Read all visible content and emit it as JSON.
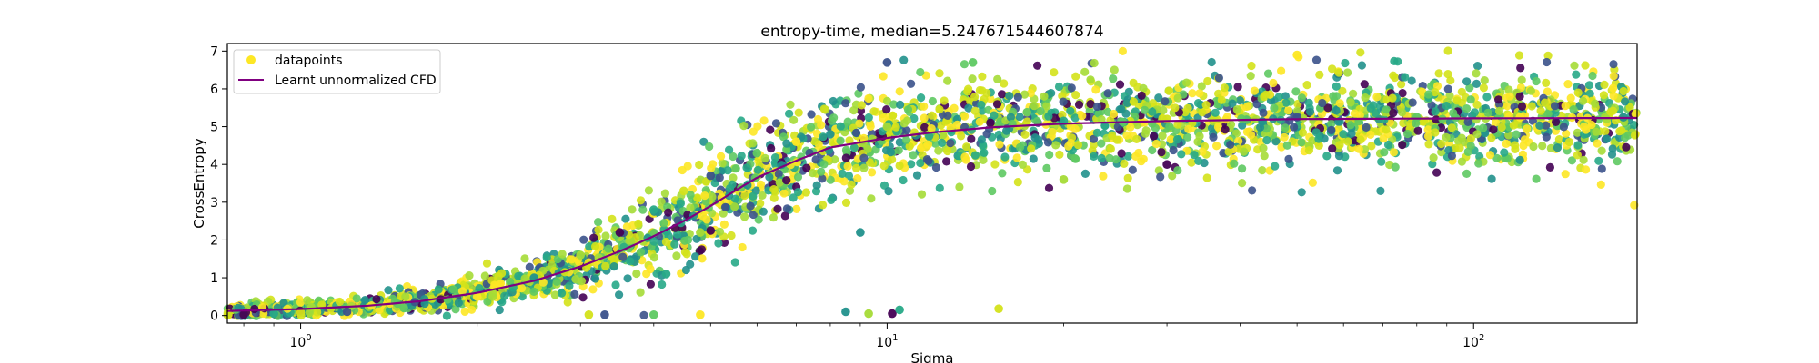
{
  "chart_data": {
    "type": "scatter",
    "title": "entropy-time, median=5.247671544607874",
    "xlabel": "Sigma",
    "ylabel": "CrossEntropy",
    "x_scale": "log",
    "xlim": [
      0.75,
      190
    ],
    "ylim": [
      -0.2,
      7.2
    ],
    "x_major_ticks": [
      1,
      10,
      100
    ],
    "x_tick_labels": [
      "10^0",
      "10^1",
      "10^2"
    ],
    "y_ticks": [
      0,
      1,
      2,
      3,
      4,
      5,
      6,
      7
    ],
    "y_tick_labels": [
      "0",
      "1",
      "2",
      "3",
      "4",
      "5",
      "6",
      "7"
    ],
    "legend": {
      "placement": "top-left",
      "entries": [
        "datapoints",
        "Learnt unnormalized CFD"
      ]
    },
    "series": [
      {
        "name": "datapoints",
        "kind": "scatter",
        "colormap": "viridis",
        "sample_points": [
          [
            0.8,
            0.02
          ],
          [
            0.9,
            0.05
          ],
          [
            1.0,
            0.08
          ],
          [
            1.2,
            0.1
          ],
          [
            1.5,
            0.2
          ],
          [
            2.0,
            0.5
          ],
          [
            2.5,
            1.0
          ],
          [
            3.0,
            1.6
          ],
          [
            3.5,
            2.2
          ],
          [
            4.0,
            2.8
          ],
          [
            4.5,
            3.3
          ],
          [
            5.0,
            3.7
          ],
          [
            6.0,
            4.3
          ],
          [
            7.0,
            4.6
          ],
          [
            8.0,
            4.8
          ],
          [
            10.0,
            5.0
          ],
          [
            15.0,
            5.1
          ],
          [
            20.0,
            5.15
          ],
          [
            30.0,
            5.2
          ],
          [
            50.0,
            5.25
          ],
          [
            80.0,
            5.25
          ],
          [
            120.0,
            5.25
          ],
          [
            180.0,
            5.25
          ],
          [
            4.8,
            2.2
          ],
          [
            5.0,
            2.25
          ],
          [
            4.2,
            1.1
          ],
          [
            3.1,
            0.02
          ],
          [
            3.3,
            0.02
          ],
          [
            4.0,
            0.02
          ],
          [
            4.8,
            0.02
          ],
          [
            8.5,
            0.1
          ],
          [
            9.3,
            0.05
          ],
          [
            10.2,
            0.05
          ],
          [
            10.5,
            0.15
          ],
          [
            15.5,
            0.18
          ],
          [
            10.0,
            6.7
          ],
          [
            14.0,
            6.7
          ],
          [
            50.0,
            6.9
          ],
          [
            9.0,
            2.2
          ],
          [
            20.0,
            3.6
          ],
          [
            30.0,
            4.0
          ]
        ]
      },
      {
        "name": "Learnt unnormalized CFD",
        "kind": "line",
        "color": "#800080",
        "x": [
          0.75,
          1.0,
          1.3,
          1.6,
          2.0,
          2.5,
          3.0,
          3.5,
          4.0,
          4.5,
          5.0,
          5.5,
          6.0,
          7.0,
          8.0,
          10.0,
          12.0,
          15.0,
          20.0,
          30.0,
          50.0,
          100.0,
          190.0
        ],
        "y": [
          0.12,
          0.17,
          0.26,
          0.38,
          0.6,
          0.92,
          1.3,
          1.7,
          2.1,
          2.5,
          2.9,
          3.3,
          3.65,
          4.1,
          4.45,
          4.7,
          4.85,
          4.98,
          5.08,
          5.15,
          5.2,
          5.22,
          5.23
        ]
      }
    ]
  }
}
